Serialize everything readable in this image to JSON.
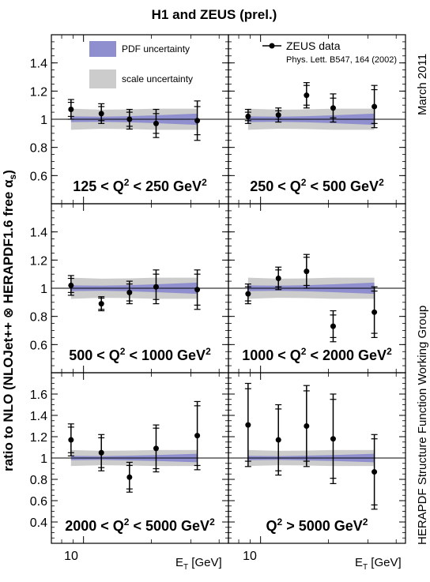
{
  "title": "H1 and ZEUS (prel.)",
  "ylabel": "ratio to NLO (NLOJet++ ⊗ HERAPDF1.6 free α",
  "ylabel_sub": "s",
  "ylabel_close": ")",
  "xlabel_main": "E",
  "xlabel_sub": "T",
  "xlabel_unit": " [GeV]",
  "x_tick_label": "10",
  "right_top_text": "March 2011",
  "right_bottom_text": "HERAPDF Structure Function Working Group",
  "legend": {
    "pdf_label": "PDF uncertainty",
    "scale_label": "scale uncertainty",
    "data_label": "ZEUS data",
    "reference": "Phys. Lett. B547, 164 (2002)"
  },
  "colors": {
    "pdf_band": "#8f8fcf",
    "scale_band": "#cccccc",
    "data": "#000000"
  },
  "chart_data": [
    {
      "type": "scatter",
      "panel": "top-left",
      "q2_parts": [
        "125 < Q",
        "2",
        " < 250 GeV",
        "2"
      ],
      "ylim": [
        0.4,
        1.6
      ],
      "yticks": [
        0.6,
        0.8,
        1,
        1.2,
        1.4
      ],
      "x": [
        8.8,
        12,
        16,
        21,
        32
      ],
      "y": [
        1.07,
        1.04,
        1.0,
        0.97,
        0.99
      ],
      "err": [
        0.07,
        0.07,
        0.07,
        0.1,
        0.14
      ],
      "syst": [
        0.05,
        0.05,
        0.05,
        0.07,
        0.1
      ]
    },
    {
      "type": "scatter",
      "panel": "top-right",
      "q2_parts": [
        "250 < Q",
        "2",
        " < 500 GeV",
        "2"
      ],
      "ylim": [
        0.4,
        1.6
      ],
      "yticks": [
        0.6,
        0.8,
        1,
        1.2,
        1.4
      ],
      "x": [
        8.8,
        12,
        16,
        21,
        32
      ],
      "y": [
        1.02,
        1.03,
        1.17,
        1.08,
        1.09
      ],
      "err": [
        0.05,
        0.05,
        0.09,
        0.1,
        0.15
      ],
      "syst": [
        0.03,
        0.03,
        0.07,
        0.07,
        0.12
      ]
    },
    {
      "type": "scatter",
      "panel": "middle-left",
      "q2_parts": [
        "500 < Q",
        "2",
        " < 1000 GeV",
        "2"
      ],
      "ylim": [
        0.4,
        1.6
      ],
      "yticks": [
        0.6,
        0.8,
        1,
        1.2,
        1.4
      ],
      "x": [
        8.8,
        12,
        16,
        21,
        32
      ],
      "y": [
        1.02,
        0.89,
        0.97,
        1.01,
        0.99
      ],
      "err": [
        0.07,
        0.05,
        0.08,
        0.12,
        0.14
      ],
      "syst": [
        0.05,
        0.04,
        0.06,
        0.09,
        0.11
      ]
    },
    {
      "type": "scatter",
      "panel": "middle-right",
      "q2_parts": [
        "1000 < Q",
        "2",
        " < 2000 GeV",
        "2"
      ],
      "ylim": [
        0.4,
        1.6
      ],
      "yticks": [
        0.6,
        0.8,
        1,
        1.2,
        1.4
      ],
      "x": [
        8.8,
        12,
        16,
        21,
        32
      ],
      "y": [
        0.96,
        1.07,
        1.12,
        0.73,
        0.83
      ],
      "err": [
        0.07,
        0.08,
        0.12,
        0.11,
        0.18
      ],
      "syst": [
        0.05,
        0.06,
        0.1,
        0.08,
        0.15
      ]
    },
    {
      "type": "scatter",
      "panel": "bottom-left",
      "q2_parts": [
        "2000 < Q",
        "2",
        " < 5000 GeV",
        "2"
      ],
      "ylim": [
        0.2,
        1.8
      ],
      "yticks": [
        0.4,
        0.6,
        0.8,
        1,
        1.2,
        1.4,
        1.6
      ],
      "x": [
        8.8,
        12,
        16,
        21,
        32
      ],
      "y": [
        1.17,
        1.05,
        0.82,
        1.09,
        1.21
      ],
      "err": [
        0.15,
        0.17,
        0.14,
        0.22,
        0.32
      ],
      "syst": [
        0.12,
        0.14,
        0.11,
        0.19,
        0.28
      ]
    },
    {
      "type": "scatter",
      "panel": "bottom-right",
      "q2_parts": [
        "Q",
        "2",
        " > 5000 GeV",
        "2"
      ],
      "ylim": [
        0.2,
        1.8
      ],
      "yticks": [
        0.4,
        0.6,
        0.8,
        1,
        1.2,
        1.4,
        1.6
      ],
      "x": [
        8.8,
        12,
        16,
        21,
        32
      ],
      "y": [
        1.31,
        1.17,
        1.3,
        1.18,
        0.87
      ],
      "err": [
        0.39,
        0.33,
        0.38,
        0.42,
        0.35
      ],
      "syst": [
        0.34,
        0.29,
        0.33,
        0.37,
        0.31
      ]
    }
  ],
  "bands": {
    "x": [
      8.8,
      12,
      16,
      21,
      32
    ],
    "pdf_halfwidth": [
      0.02,
      0.018,
      0.022,
      0.028,
      0.04
    ],
    "scale_halfwidth": [
      0.075,
      0.068,
      0.07,
      0.075,
      0.075
    ]
  }
}
